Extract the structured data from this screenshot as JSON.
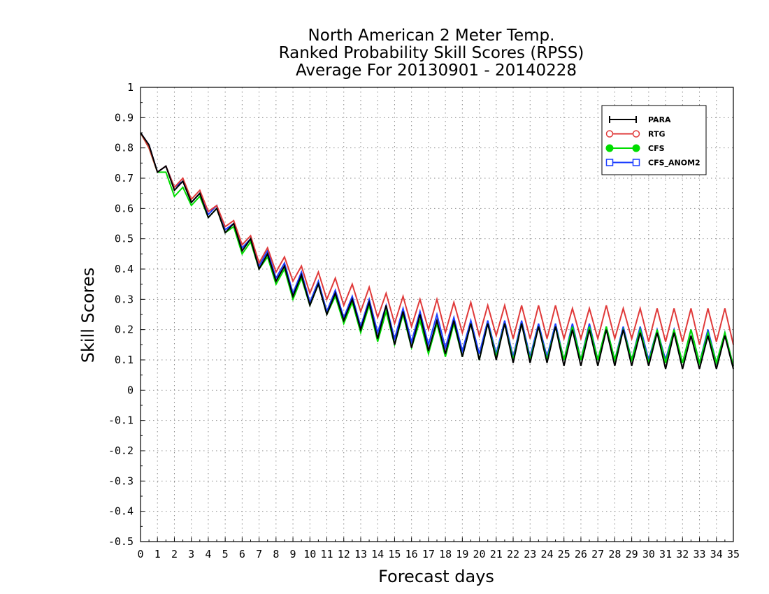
{
  "chart_data": {
    "type": "line",
    "title": [
      "North American 2 Meter Temp.",
      "Ranked Probability Skill Scores (RPSS)",
      "Average For 20130901 - 20140228"
    ],
    "xlabel": "Forecast days",
    "ylabel": "Skill Scores",
    "xlim": [
      0,
      35
    ],
    "ylim": [
      -0.5,
      1
    ],
    "xticks": [
      "0",
      "1",
      "2",
      "3",
      "4",
      "5",
      "6",
      "7",
      "8",
      "9",
      "10",
      "11",
      "12",
      "13",
      "14",
      "15",
      "16",
      "17",
      "18",
      "19",
      "20",
      "21",
      "22",
      "23",
      "24",
      "25",
      "26",
      "27",
      "28",
      "29",
      "30",
      "31",
      "32",
      "33",
      "34",
      "35"
    ],
    "yticks": [
      "1",
      "0.9",
      "0.8",
      "0.7",
      "0.6",
      "0.5",
      "0.4",
      "0.3",
      "0.2",
      "0.1",
      "0",
      "-0.1",
      "-0.2",
      "-0.3",
      "-0.4",
      "-0.5"
    ],
    "grid": true,
    "legend_position": "top-right",
    "x": [
      0,
      0.5,
      1,
      1.5,
      2,
      2.5,
      3,
      3.5,
      4,
      4.5,
      5,
      5.5,
      6,
      6.5,
      7,
      7.5,
      8,
      8.5,
      9,
      9.5,
      10,
      10.5,
      11,
      11.5,
      12,
      12.5,
      13,
      13.5,
      14,
      14.5,
      15,
      15.5,
      16,
      16.5,
      17,
      17.5,
      18,
      18.5,
      19,
      19.5,
      20,
      20.5,
      21,
      21.5,
      22,
      22.5,
      23,
      23.5,
      24,
      24.5,
      25,
      25.5,
      26,
      26.5,
      27,
      27.5,
      28,
      28.5,
      29,
      29.5,
      30,
      30.5,
      31,
      31.5,
      32,
      32.5,
      33,
      33.5,
      34,
      34.5,
      35
    ],
    "series": [
      {
        "name": "PARA",
        "color": "#000000",
        "marker": "plus",
        "values": [
          0.85,
          0.81,
          0.72,
          0.74,
          0.66,
          0.69,
          0.62,
          0.65,
          0.57,
          0.6,
          0.52,
          0.55,
          0.46,
          0.5,
          0.4,
          0.45,
          0.36,
          0.41,
          0.31,
          0.38,
          0.28,
          0.35,
          0.25,
          0.32,
          0.23,
          0.3,
          0.2,
          0.29,
          0.17,
          0.28,
          0.15,
          0.26,
          0.14,
          0.25,
          0.13,
          0.23,
          0.12,
          0.23,
          0.11,
          0.22,
          0.1,
          0.22,
          0.1,
          0.22,
          0.09,
          0.22,
          0.09,
          0.21,
          0.09,
          0.21,
          0.08,
          0.2,
          0.08,
          0.2,
          0.08,
          0.2,
          0.08,
          0.2,
          0.08,
          0.19,
          0.08,
          0.19,
          0.07,
          0.19,
          0.07,
          0.18,
          0.07,
          0.18,
          0.07,
          0.18,
          0.07
        ]
      },
      {
        "name": "RTG",
        "color": "#e03a3a",
        "marker": "circle",
        "values": [
          0.85,
          0.8,
          0.72,
          0.74,
          0.67,
          0.7,
          0.63,
          0.66,
          0.59,
          0.61,
          0.54,
          0.56,
          0.48,
          0.51,
          0.42,
          0.47,
          0.39,
          0.44,
          0.36,
          0.41,
          0.32,
          0.39,
          0.3,
          0.37,
          0.28,
          0.35,
          0.26,
          0.34,
          0.24,
          0.32,
          0.22,
          0.31,
          0.21,
          0.3,
          0.2,
          0.3,
          0.19,
          0.29,
          0.19,
          0.29,
          0.18,
          0.28,
          0.18,
          0.28,
          0.17,
          0.28,
          0.17,
          0.28,
          0.17,
          0.28,
          0.17,
          0.27,
          0.17,
          0.27,
          0.17,
          0.28,
          0.17,
          0.27,
          0.17,
          0.27,
          0.16,
          0.27,
          0.16,
          0.27,
          0.16,
          0.27,
          0.15,
          0.27,
          0.16,
          0.27,
          0.15
        ]
      },
      {
        "name": "CFS",
        "color": "#00dd00",
        "marker": "dot",
        "values": [
          0.85,
          0.8,
          0.72,
          0.72,
          0.64,
          0.67,
          0.61,
          0.64,
          0.57,
          0.6,
          0.52,
          0.54,
          0.45,
          0.49,
          0.4,
          0.44,
          0.35,
          0.4,
          0.3,
          0.37,
          0.28,
          0.35,
          0.25,
          0.31,
          0.22,
          0.29,
          0.19,
          0.28,
          0.16,
          0.26,
          0.15,
          0.25,
          0.14,
          0.23,
          0.12,
          0.22,
          0.11,
          0.22,
          0.11,
          0.22,
          0.1,
          0.22,
          0.11,
          0.22,
          0.1,
          0.22,
          0.1,
          0.21,
          0.1,
          0.21,
          0.1,
          0.21,
          0.1,
          0.21,
          0.1,
          0.21,
          0.1,
          0.2,
          0.1,
          0.2,
          0.09,
          0.2,
          0.09,
          0.2,
          0.09,
          0.2,
          0.09,
          0.19,
          0.09,
          0.19,
          0.08
        ]
      },
      {
        "name": "CFS_ANOM2",
        "color": "#1a3cff",
        "marker": "square",
        "values": [
          0.85,
          0.81,
          0.72,
          0.74,
          0.67,
          0.69,
          0.62,
          0.65,
          0.58,
          0.61,
          0.53,
          0.55,
          0.47,
          0.5,
          0.41,
          0.46,
          0.37,
          0.42,
          0.32,
          0.39,
          0.29,
          0.36,
          0.26,
          0.33,
          0.24,
          0.31,
          0.21,
          0.3,
          0.19,
          0.28,
          0.17,
          0.27,
          0.16,
          0.26,
          0.15,
          0.25,
          0.14,
          0.24,
          0.13,
          0.23,
          0.12,
          0.23,
          0.12,
          0.23,
          0.11,
          0.23,
          0.11,
          0.22,
          0.11,
          0.22,
          0.1,
          0.22,
          0.1,
          0.22,
          0.1,
          0.21,
          0.1,
          0.21,
          0.1,
          0.21,
          0.1,
          0.2,
          0.1,
          0.2,
          0.09,
          0.2,
          0.09,
          0.2,
          0.09,
          0.19,
          0.08
        ]
      }
    ]
  }
}
